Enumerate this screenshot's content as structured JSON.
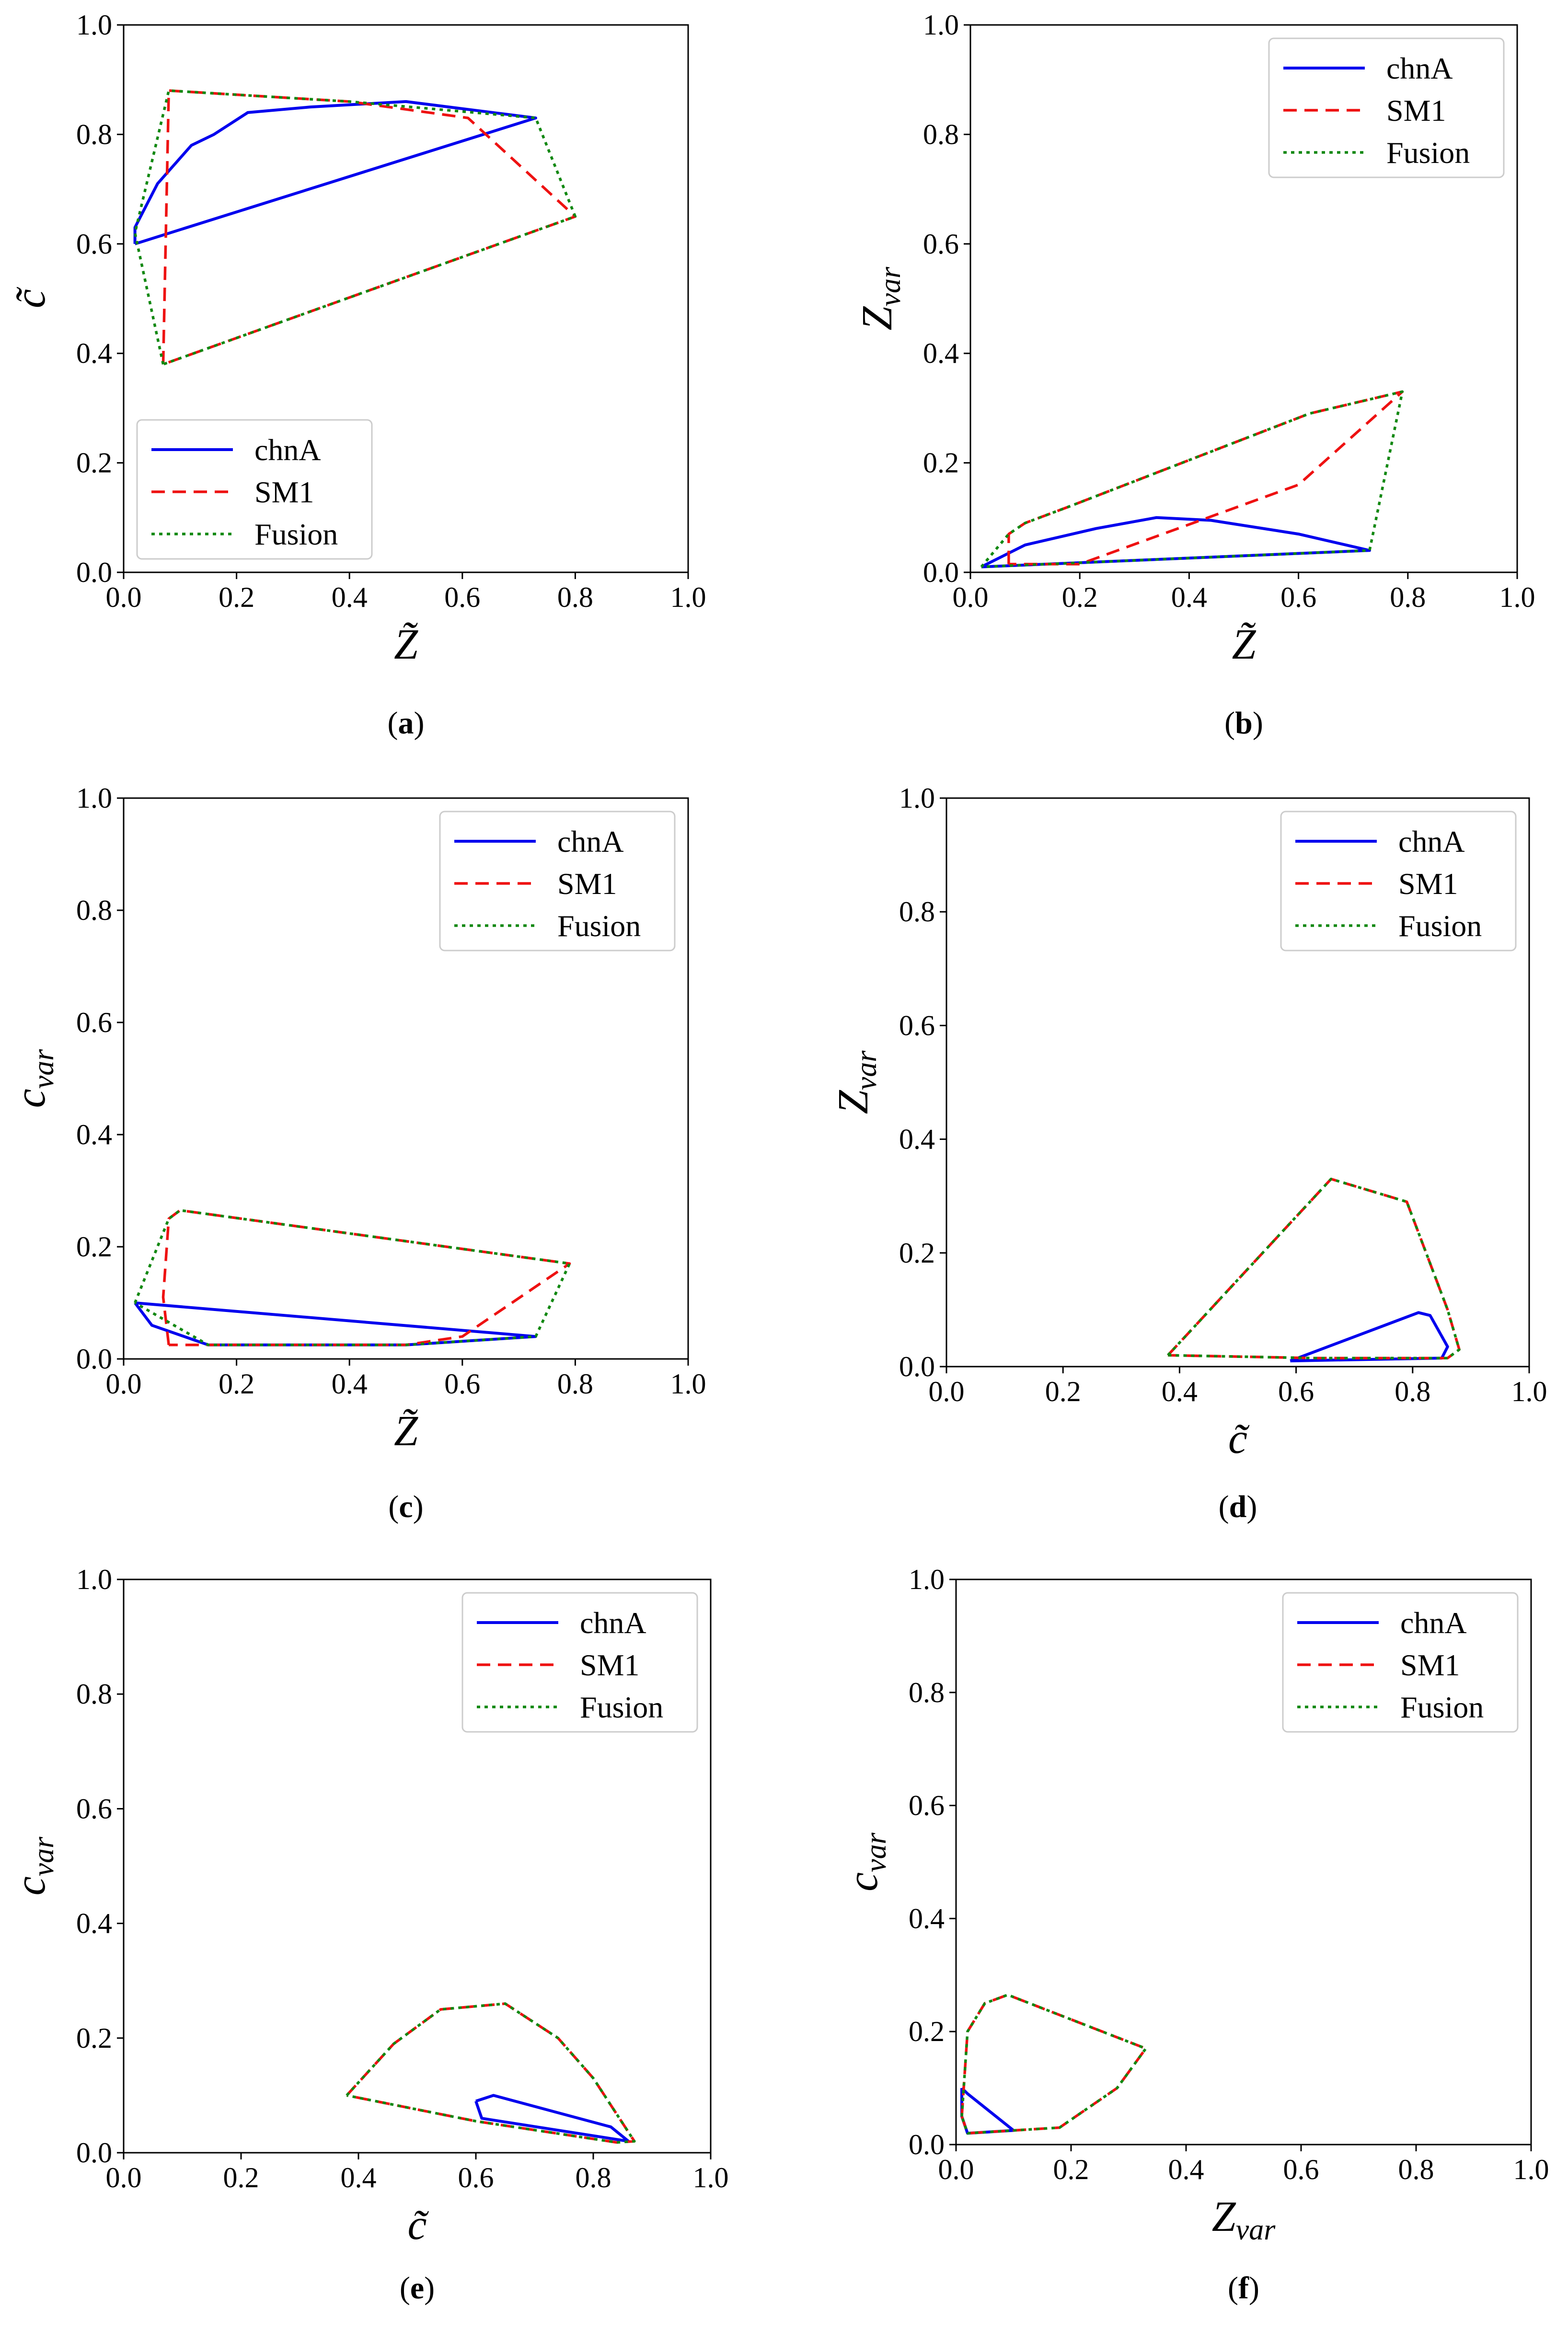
{
  "chart_data": [
    {
      "type": "line",
      "caption_letter": "a",
      "xlabel": {
        "base": "Z",
        "sub": "",
        "tilde": true
      },
      "ylabel": {
        "base": "c",
        "sub": "",
        "tilde": true
      },
      "xlim": [
        0,
        1
      ],
      "ylim": [
        0,
        1
      ],
      "xticks": [
        "0.0",
        "0.2",
        "0.4",
        "0.6",
        "0.8",
        "1.0"
      ],
      "yticks": [
        "0.0",
        "0.2",
        "0.4",
        "0.6",
        "0.8",
        "1.0"
      ],
      "legend_position": "lower-left",
      "series": [
        {
          "name": "chnA",
          "color": "#0000ee",
          "dash": "solid",
          "points": [
            [
              0.02,
              0.6
            ],
            [
              0.02,
              0.63
            ],
            [
              0.06,
              0.71
            ],
            [
              0.12,
              0.78
            ],
            [
              0.16,
              0.8
            ],
            [
              0.22,
              0.84
            ],
            [
              0.33,
              0.85
            ],
            [
              0.5,
              0.86
            ],
            [
              0.73,
              0.83
            ],
            [
              0.02,
              0.6
            ]
          ]
        },
        {
          "name": "SM1",
          "color": "#ee1111",
          "dash": "dashed",
          "points": [
            [
              0.07,
              0.38
            ],
            [
              0.08,
              0.88
            ],
            [
              0.4,
              0.86
            ],
            [
              0.61,
              0.83
            ],
            [
              0.8,
              0.65
            ],
            [
              0.07,
              0.38
            ]
          ]
        },
        {
          "name": "Fusion",
          "color": "#118811",
          "dash": "dotted",
          "points": [
            [
              0.07,
              0.38
            ],
            [
              0.02,
              0.62
            ],
            [
              0.08,
              0.88
            ],
            [
              0.4,
              0.86
            ],
            [
              0.73,
              0.83
            ],
            [
              0.8,
              0.65
            ],
            [
              0.07,
              0.38
            ]
          ]
        }
      ]
    },
    {
      "type": "line",
      "caption_letter": "b",
      "xlabel": {
        "base": "Z",
        "sub": "",
        "tilde": true
      },
      "ylabel": {
        "base": "Z",
        "sub": "var",
        "tilde": false
      },
      "xlim": [
        0,
        1
      ],
      "ylim": [
        0,
        1
      ],
      "xticks": [
        "0.0",
        "0.2",
        "0.4",
        "0.6",
        "0.8",
        "1.0"
      ],
      "yticks": [
        "0.0",
        "0.2",
        "0.4",
        "0.6",
        "0.8",
        "1.0"
      ],
      "legend_position": "upper-right",
      "series": [
        {
          "name": "chnA",
          "color": "#0000ee",
          "dash": "solid",
          "points": [
            [
              0.02,
              0.01
            ],
            [
              0.1,
              0.05
            ],
            [
              0.23,
              0.08
            ],
            [
              0.34,
              0.1
            ],
            [
              0.44,
              0.095
            ],
            [
              0.6,
              0.07
            ],
            [
              0.73,
              0.04
            ],
            [
              0.02,
              0.01
            ]
          ]
        },
        {
          "name": "SM1",
          "color": "#ee1111",
          "dash": "dashed",
          "points": [
            [
              0.07,
              0.015
            ],
            [
              0.07,
              0.07
            ],
            [
              0.1,
              0.09
            ],
            [
              0.18,
              0.12
            ],
            [
              0.62,
              0.29
            ],
            [
              0.79,
              0.33
            ],
            [
              0.6,
              0.16
            ],
            [
              0.2,
              0.015
            ],
            [
              0.07,
              0.015
            ]
          ]
        },
        {
          "name": "Fusion",
          "color": "#118811",
          "dash": "dotted",
          "points": [
            [
              0.02,
              0.01
            ],
            [
              0.07,
              0.07
            ],
            [
              0.1,
              0.09
            ],
            [
              0.18,
              0.12
            ],
            [
              0.62,
              0.29
            ],
            [
              0.79,
              0.33
            ],
            [
              0.73,
              0.04
            ],
            [
              0.02,
              0.01
            ]
          ]
        }
      ]
    },
    {
      "type": "line",
      "caption_letter": "c",
      "xlabel": {
        "base": "Z",
        "sub": "",
        "tilde": true
      },
      "ylabel": {
        "base": "c",
        "sub": "var",
        "tilde": false
      },
      "xlim": [
        0,
        1
      ],
      "ylim": [
        0,
        1
      ],
      "xticks": [
        "0.0",
        "0.2",
        "0.4",
        "0.6",
        "0.8",
        "1.0"
      ],
      "yticks": [
        "0.0",
        "0.2",
        "0.4",
        "0.6",
        "0.8",
        "1.0"
      ],
      "legend_position": "upper-right",
      "series": [
        {
          "name": "chnA",
          "color": "#0000ee",
          "dash": "solid",
          "points": [
            [
              0.02,
              0.1
            ],
            [
              0.05,
              0.06
            ],
            [
              0.15,
              0.025
            ],
            [
              0.5,
              0.025
            ],
            [
              0.73,
              0.04
            ],
            [
              0.02,
              0.1
            ]
          ]
        },
        {
          "name": "SM1",
          "color": "#ee1111",
          "dash": "dashed",
          "points": [
            [
              0.08,
              0.025
            ],
            [
              0.07,
              0.11
            ],
            [
              0.08,
              0.25
            ],
            [
              0.1,
              0.265
            ],
            [
              0.79,
              0.17
            ],
            [
              0.6,
              0.04
            ],
            [
              0.5,
              0.025
            ],
            [
              0.08,
              0.025
            ]
          ]
        },
        {
          "name": "Fusion",
          "color": "#118811",
          "dash": "dotted",
          "points": [
            [
              0.02,
              0.1
            ],
            [
              0.08,
              0.25
            ],
            [
              0.1,
              0.265
            ],
            [
              0.79,
              0.17
            ],
            [
              0.73,
              0.04
            ],
            [
              0.5,
              0.025
            ],
            [
              0.15,
              0.025
            ],
            [
              0.02,
              0.1
            ]
          ]
        }
      ]
    },
    {
      "type": "line",
      "caption_letter": "d",
      "xlabel": {
        "base": "c",
        "sub": "",
        "tilde": true
      },
      "ylabel": {
        "base": "Z",
        "sub": "var",
        "tilde": false
      },
      "xlim": [
        0,
        1
      ],
      "ylim": [
        0,
        1
      ],
      "xticks": [
        "0.0",
        "0.2",
        "0.4",
        "0.6",
        "0.8",
        "1.0"
      ],
      "yticks": [
        "0.0",
        "0.2",
        "0.4",
        "0.6",
        "0.8",
        "1.0"
      ],
      "legend_position": "upper-right",
      "series": [
        {
          "name": "chnA",
          "color": "#0000ee",
          "dash": "solid",
          "points": [
            [
              0.59,
              0.01
            ],
            [
              0.81,
              0.095
            ],
            [
              0.83,
              0.09
            ],
            [
              0.86,
              0.035
            ],
            [
              0.85,
              0.015
            ],
            [
              0.59,
              0.01
            ]
          ]
        },
        {
          "name": "SM1",
          "color": "#ee1111",
          "dash": "dashed",
          "points": [
            [
              0.38,
              0.02
            ],
            [
              0.66,
              0.33
            ],
            [
              0.79,
              0.29
            ],
            [
              0.86,
              0.1
            ],
            [
              0.88,
              0.03
            ],
            [
              0.86,
              0.015
            ],
            [
              0.63,
              0.015
            ],
            [
              0.38,
              0.02
            ]
          ]
        },
        {
          "name": "Fusion",
          "color": "#118811",
          "dash": "dotted",
          "points": [
            [
              0.38,
              0.02
            ],
            [
              0.66,
              0.33
            ],
            [
              0.79,
              0.29
            ],
            [
              0.86,
              0.1
            ],
            [
              0.88,
              0.03
            ],
            [
              0.86,
              0.015
            ],
            [
              0.63,
              0.015
            ],
            [
              0.38,
              0.02
            ]
          ]
        }
      ]
    },
    {
      "type": "line",
      "caption_letter": "e",
      "xlabel": {
        "base": "c",
        "sub": "",
        "tilde": true
      },
      "ylabel": {
        "base": "c",
        "sub": "var",
        "tilde": false
      },
      "xlim": [
        0,
        1
      ],
      "ylim": [
        0,
        1
      ],
      "xticks": [
        "0.0",
        "0.2",
        "0.4",
        "0.6",
        "0.8",
        "1.0"
      ],
      "yticks": [
        "0.0",
        "0.2",
        "0.4",
        "0.6",
        "0.8",
        "1.0"
      ],
      "legend_position": "upper-right",
      "series": [
        {
          "name": "chnA",
          "color": "#0000ee",
          "dash": "solid",
          "points": [
            [
              0.6,
              0.09
            ],
            [
              0.63,
              0.1
            ],
            [
              0.83,
              0.045
            ],
            [
              0.86,
              0.02
            ],
            [
              0.61,
              0.06
            ],
            [
              0.6,
              0.09
            ]
          ]
        },
        {
          "name": "SM1",
          "color": "#ee1111",
          "dash": "dashed",
          "points": [
            [
              0.38,
              0.1
            ],
            [
              0.46,
              0.19
            ],
            [
              0.54,
              0.25
            ],
            [
              0.65,
              0.26
            ],
            [
              0.74,
              0.2
            ],
            [
              0.8,
              0.13
            ],
            [
              0.87,
              0.02
            ],
            [
              0.84,
              0.018
            ],
            [
              0.6,
              0.055
            ],
            [
              0.38,
              0.1
            ]
          ]
        },
        {
          "name": "Fusion",
          "color": "#118811",
          "dash": "dotted",
          "points": [
            [
              0.38,
              0.1
            ],
            [
              0.46,
              0.19
            ],
            [
              0.54,
              0.25
            ],
            [
              0.65,
              0.26
            ],
            [
              0.74,
              0.2
            ],
            [
              0.8,
              0.13
            ],
            [
              0.87,
              0.02
            ],
            [
              0.84,
              0.018
            ],
            [
              0.6,
              0.055
            ],
            [
              0.38,
              0.1
            ]
          ]
        }
      ]
    },
    {
      "type": "line",
      "caption_letter": "f",
      "xlabel": {
        "base": "Z",
        "sub": "var",
        "tilde": false
      },
      "ylabel": {
        "base": "c",
        "sub": "var",
        "tilde": false
      },
      "xlim": [
        0,
        1
      ],
      "ylim": [
        0,
        1
      ],
      "xticks": [
        "0.0",
        "0.2",
        "0.4",
        "0.6",
        "0.8",
        "1.0"
      ],
      "yticks": [
        "0.0",
        "0.2",
        "0.4",
        "0.6",
        "0.8",
        "1.0"
      ],
      "legend_position": "upper-right",
      "series": [
        {
          "name": "chnA",
          "color": "#0000ee",
          "dash": "solid",
          "points": [
            [
              0.01,
              0.1
            ],
            [
              0.02,
              0.09
            ],
            [
              0.1,
              0.025
            ],
            [
              0.02,
              0.02
            ],
            [
              0.01,
              0.05
            ],
            [
              0.01,
              0.1
            ]
          ]
        },
        {
          "name": "SM1",
          "color": "#ee1111",
          "dash": "dashed",
          "points": [
            [
              0.01,
              0.05
            ],
            [
              0.02,
              0.2
            ],
            [
              0.05,
              0.25
            ],
            [
              0.09,
              0.265
            ],
            [
              0.33,
              0.17
            ],
            [
              0.28,
              0.1
            ],
            [
              0.18,
              0.03
            ],
            [
              0.02,
              0.02
            ],
            [
              0.01,
              0.05
            ]
          ]
        },
        {
          "name": "Fusion",
          "color": "#118811",
          "dash": "dotted",
          "points": [
            [
              0.01,
              0.05
            ],
            [
              0.02,
              0.2
            ],
            [
              0.05,
              0.25
            ],
            [
              0.09,
              0.265
            ],
            [
              0.33,
              0.17
            ],
            [
              0.28,
              0.1
            ],
            [
              0.18,
              0.03
            ],
            [
              0.02,
              0.02
            ],
            [
              0.01,
              0.05
            ]
          ]
        }
      ]
    }
  ]
}
